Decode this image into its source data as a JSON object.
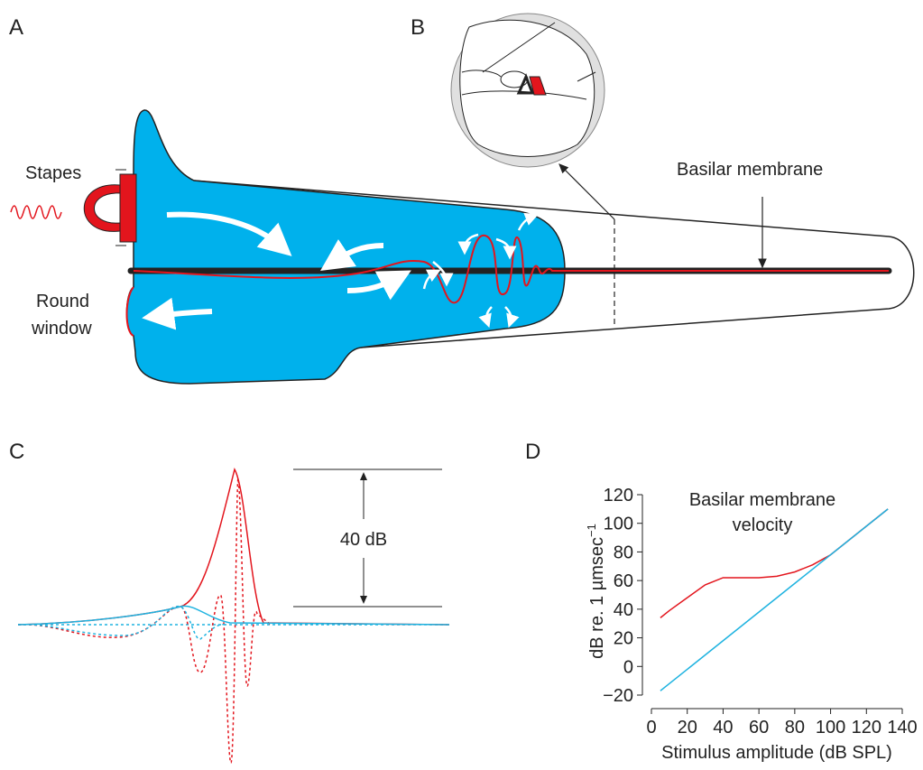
{
  "panel_labels": [
    "A",
    "B",
    "C",
    "D"
  ],
  "panel_a": {
    "stapes": "Stapes",
    "round_window": [
      "Round",
      "window"
    ],
    "basilar_membrane": "Basilar membrane"
  },
  "panel_c": {
    "scale_label": "40 dB"
  },
  "chart_data": {
    "type": "line",
    "title_lines": [
      "Basilar membrane",
      "velocity"
    ],
    "xlabel": "Stimulus amplitude (dB SPL)",
    "ylabel": "dB re. 1 µmsec",
    "ylabel_sup": "−1",
    "xlim": [
      0,
      140
    ],
    "ylim": [
      -20,
      120
    ],
    "xticks": [
      0,
      20,
      40,
      60,
      80,
      100,
      120,
      140
    ],
    "yticks": [
      {
        "value": -20,
        "label": "−20"
      },
      0,
      20,
      40,
      60,
      80,
      100,
      120
    ],
    "series": [
      {
        "color": "#e3151d",
        "x": [
          5,
          10,
          20,
          30,
          40,
          50,
          60,
          70,
          80,
          90,
          100,
          110,
          120,
          132
        ],
        "values": [
          34,
          39,
          48,
          57,
          62,
          62,
          62,
          63,
          66,
          71,
          78,
          88,
          98,
          110
        ]
      },
      {
        "color": "#1fb3e0",
        "x": [
          5,
          132
        ],
        "values": [
          -17,
          110
        ]
      }
    ]
  }
}
